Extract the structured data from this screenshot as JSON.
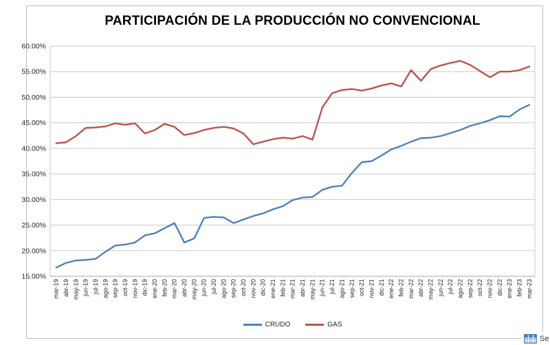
{
  "overlay": {
    "text_fragment": "Se"
  },
  "chart_data": {
    "type": "line",
    "title": "PARTICIPACIÓN DE LA PRODUCCIÓN NO CONVENCIONAL",
    "xlabel": "",
    "ylabel": "",
    "grid": true,
    "legend_position": "bottom",
    "ylim": [
      15,
      60
    ],
    "y_tick_values": [
      60,
      55,
      50,
      45,
      40,
      35,
      30,
      25,
      20,
      15
    ],
    "y_ticks": [
      "60.00%",
      "55.00%",
      "50.00%",
      "45.00%",
      "40.00%",
      "35.00%",
      "30.00%",
      "25.00%",
      "20.00%",
      "15.00%"
    ],
    "categories": [
      "mar-19",
      "abr-19",
      "may-19",
      "jun-19",
      "jul-19",
      "ago-19",
      "sep-19",
      "oct-19",
      "nov-19",
      "dic-19",
      "ene-20",
      "feb-20",
      "mar-20",
      "abr-20",
      "may-20",
      "jun-20",
      "jul-20",
      "ago-20",
      "sep-20",
      "oct-20",
      "nov-20",
      "dic-20",
      "ene-21",
      "feb-21",
      "mar-21",
      "abr-21",
      "may-21",
      "jun-21",
      "jul-21",
      "ago-21",
      "sep-21",
      "oct-21",
      "nov-21",
      "dic-21",
      "ene-22",
      "feb-22",
      "mar-22",
      "abr-22",
      "may-22",
      "jun-22",
      "jul-22",
      "ago-22",
      "sep-22",
      "oct-22",
      "nov-22",
      "dic-22",
      "ene-23",
      "feb-23",
      "mar-23"
    ],
    "series": [
      {
        "name": "CRUDO",
        "color": "#4F81BD",
        "values": [
          16.7,
          17.6,
          18.1,
          18.2,
          18.4,
          19.8,
          21.0,
          21.2,
          21.6,
          23.0,
          23.4,
          24.4,
          25.4,
          21.6,
          22.4,
          26.4,
          26.6,
          26.5,
          25.4,
          26.1,
          26.8,
          27.3,
          28.1,
          28.7,
          29.9,
          30.4,
          30.5,
          31.9,
          32.5,
          32.7,
          35.2,
          37.3,
          37.5,
          38.6,
          39.8,
          40.5,
          41.3,
          42.0,
          42.1,
          42.4,
          43.0,
          43.6,
          44.4,
          44.9,
          45.5,
          46.3,
          46.2,
          47.6,
          48.5
        ]
      },
      {
        "name": "GAS",
        "color": "#C0504D",
        "values": [
          41.0,
          41.2,
          42.4,
          44.0,
          44.1,
          44.3,
          44.9,
          44.6,
          44.9,
          42.9,
          43.6,
          44.8,
          44.2,
          42.6,
          43.0,
          43.6,
          44.0,
          44.2,
          43.9,
          42.9,
          40.8,
          41.3,
          41.8,
          42.1,
          41.9,
          42.4,
          41.7,
          48.0,
          50.8,
          51.4,
          51.6,
          51.3,
          51.7,
          52.3,
          52.7,
          52.1,
          55.3,
          53.2,
          55.5,
          56.2,
          56.7,
          57.1,
          56.3,
          55.1,
          53.9,
          55.0,
          55.0,
          55.3,
          56.0
        ]
      }
    ]
  }
}
